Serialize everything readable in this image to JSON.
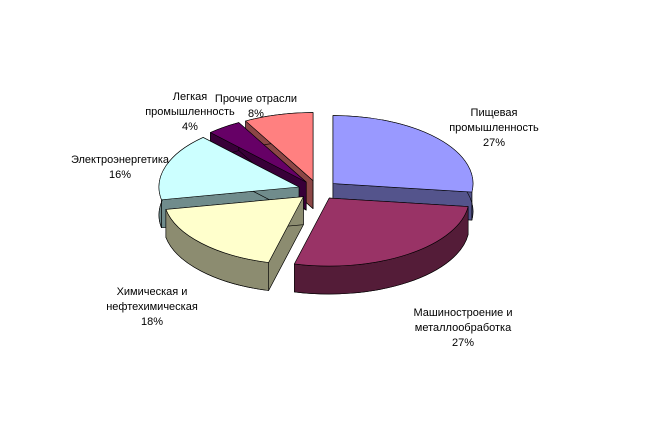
{
  "chart_data": {
    "type": "pie3d",
    "categories": [
      "Пищевая промышленность",
      "Машиностроение и металлообработка",
      "Химическая и нефтехимическая",
      "Электроэнергетика",
      "Легкая промышленность",
      "Прочие отрасли"
    ],
    "values": [
      27,
      27,
      18,
      16,
      4,
      8
    ],
    "value_labels": [
      "27%",
      "27%",
      "18%",
      "16%",
      "4%",
      "8%"
    ],
    "colors": [
      "#9999ff",
      "#993366",
      "#ffffcc",
      "#ccffff",
      "#660066",
      "#ff8080"
    ]
  }
}
